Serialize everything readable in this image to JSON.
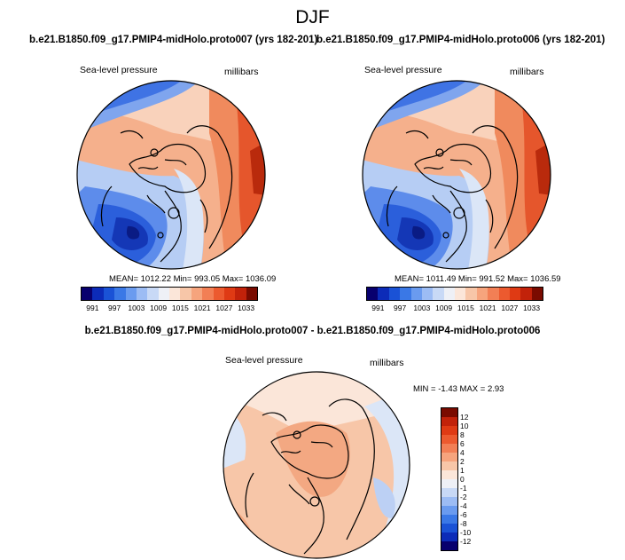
{
  "figure": {
    "season": "DJF",
    "left_panel": {
      "title": "b.e21.B1850.f09_g17.PMIP4-midHolo.proto007 (yrs 182-201)",
      "variable": "Sea-level pressure",
      "units": "millibars",
      "stats": "MEAN= 1012.22  Min= 993.05  Max= 1036.09"
    },
    "right_panel": {
      "title": "b.e21.B1850.f09_g17.PMIP4-midHolo.proto006 (yrs 182-201)",
      "variable": "Sea-level pressure",
      "units": "millibars",
      "stats": "MEAN= 1011.49  Min= 991.52  Max= 1036.59"
    },
    "diff_panel": {
      "title": "b.e21.B1850.f09_g17.PMIP4-midHolo.proto007 - b.e21.B1850.f09_g17.PMIP4-midHolo.proto006",
      "variable": "Sea-level pressure",
      "units": "millibars",
      "stats": "MIN =  -1.43 MAX =   2.93"
    }
  },
  "colorbar_abs": {
    "colors": [
      "#08006e",
      "#0c2bb8",
      "#1a52d6",
      "#3a78e6",
      "#6a9bef",
      "#9cbcf4",
      "#c8d9f6",
      "#eef0f6",
      "#fbe6d9",
      "#f7c6a8",
      "#f6a47d",
      "#f27f55",
      "#ec5a2f",
      "#df3a14",
      "#c2220a",
      "#7a0b00"
    ],
    "labels": [
      "991",
      "997",
      "1003",
      "1009",
      "1015",
      "1021",
      "1027",
      "1033"
    ]
  },
  "colorbar_diff": {
    "colors": [
      "#7a0b00",
      "#c2220a",
      "#df3a14",
      "#ec5a2f",
      "#f27f55",
      "#f6a47d",
      "#f7c6a8",
      "#fbe6d9",
      "#eef0f6",
      "#c8d9f6",
      "#9cbcf4",
      "#6a9bef",
      "#3a78e6",
      "#1a52d6",
      "#0c2bb8",
      "#08006e"
    ],
    "labels": [
      "12",
      "10",
      "8",
      "6",
      "4",
      "2",
      "1",
      "0",
      "-1",
      "-2",
      "-4",
      "-6",
      "-8",
      "-10",
      "-12"
    ]
  }
}
